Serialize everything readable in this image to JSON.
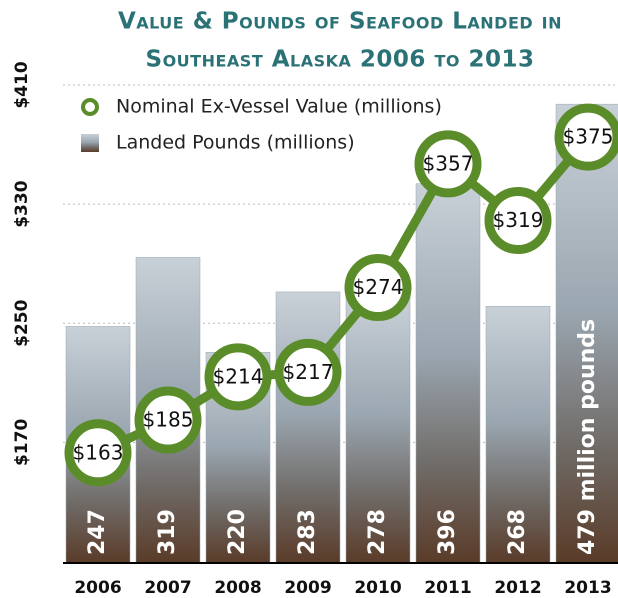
{
  "chart_data": {
    "type": "bar",
    "title": [
      "Value & Pounds of Seafood Landed in",
      "Southeast Alaska 2006 to 2013"
    ],
    "categories": [
      "2006",
      "2007",
      "2008",
      "2009",
      "2010",
      "2011",
      "2012",
      "2013"
    ],
    "series": [
      {
        "name": "Landed Pounds (millions)",
        "type": "bar",
        "axis": "y2",
        "color": "#9aa6b0",
        "values": [
          247,
          319,
          220,
          283,
          278,
          396,
          268,
          479
        ],
        "value_labels": [
          "247",
          "319",
          "220",
          "283",
          "278",
          "396",
          "268",
          "479 million pounds"
        ]
      },
      {
        "name": "Nominal Ex-Vessel Value (millions)",
        "type": "line",
        "color": "#5b8c2a",
        "values": [
          163,
          185,
          214,
          217,
          274,
          357,
          319,
          375
        ],
        "value_labels": [
          "$163",
          "$185",
          "$214",
          "$217",
          "$274",
          "$357",
          "$319",
          "$375"
        ]
      }
    ],
    "ylim": [
      89,
      410
    ],
    "yticks": [
      {
        "value": 170,
        "label": "$170"
      },
      {
        "value": 250,
        "label": "$250"
      },
      {
        "value": 330,
        "label": "$330"
      },
      {
        "value": 410,
        "label": "$410"
      }
    ],
    "y2lim": [
      0,
      499
    ],
    "grid": true
  }
}
